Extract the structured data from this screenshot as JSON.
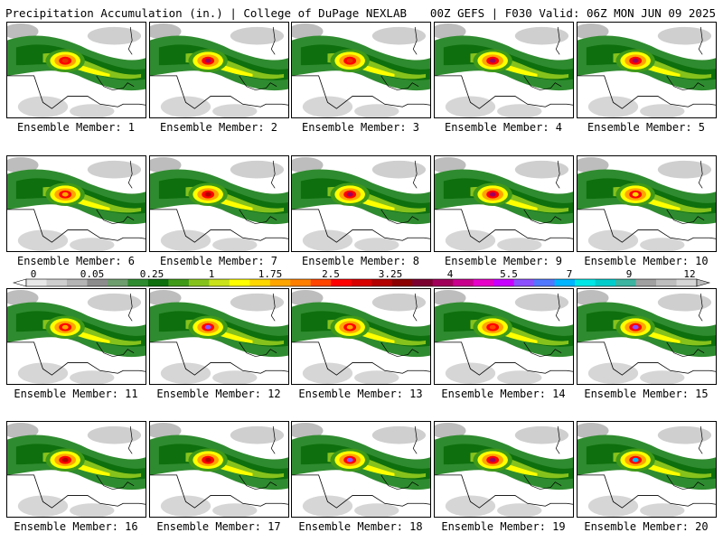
{
  "header": {
    "left": "Precipitation Accumulation (in.) | College of DuPage NEXLAB",
    "right": "00Z GEFS | F030 Valid: 06Z MON JUN 09 2025"
  },
  "colorbar": {
    "tick_labels": [
      "0",
      "0.05",
      "0.25",
      "1",
      "1.75",
      "2.5",
      "3.25",
      "4",
      "5.5",
      "7",
      "9",
      "12"
    ],
    "colors": [
      "#e8e8e8",
      "#cfcfcf",
      "#b4b4b4",
      "#8c8c8c",
      "#6e9d6e",
      "#2f8b2f",
      "#0d6f0d",
      "#3f9a18",
      "#86c21c",
      "#c9e219",
      "#ffff00",
      "#ffd700",
      "#ffa500",
      "#ff7f00",
      "#ff4500",
      "#ff0000",
      "#d90000",
      "#b30000",
      "#8b0000",
      "#7a0030",
      "#a0005a",
      "#c8008c",
      "#e600c8",
      "#c800ff",
      "#8c50ff",
      "#5078ff",
      "#00b4ff",
      "#00e6e6",
      "#00cccc",
      "#3cb4a0",
      "#a0a0a0",
      "#bdbdbd",
      "#d6d6d6"
    ]
  },
  "panels": [
    {
      "label": "Ensemble Member: 1",
      "peak": "#e63000"
    },
    {
      "label": "Ensemble Member: 2",
      "peak": "#a0005a"
    },
    {
      "label": "Ensemble Member: 3",
      "peak": "#e63000"
    },
    {
      "label": "Ensemble Member: 4",
      "peak": "#a0005a"
    },
    {
      "label": "Ensemble Member: 5",
      "peak": "#a0005a"
    },
    {
      "label": "Ensemble Member: 6",
      "peak": "#ffa500"
    },
    {
      "label": "Ensemble Member: 7",
      "peak": "#b30000"
    },
    {
      "label": "Ensemble Member: 8",
      "peak": "#a0005a"
    },
    {
      "label": "Ensemble Member: 9",
      "peak": "#a0005a"
    },
    {
      "label": "Ensemble Member: 10",
      "peak": "#ffd700"
    },
    {
      "label": "Ensemble Member: 11",
      "peak": "#ffa500"
    },
    {
      "label": "Ensemble Member: 12",
      "peak": "#8c50ff"
    },
    {
      "label": "Ensemble Member: 13",
      "peak": "#ffa500"
    },
    {
      "label": "Ensemble Member: 14",
      "peak": "#ff4500"
    },
    {
      "label": "Ensemble Member: 15",
      "peak": "#8c50ff"
    },
    {
      "label": "Ensemble Member: 16",
      "peak": "#b30000"
    },
    {
      "label": "Ensemble Member: 17",
      "peak": "#b30000"
    },
    {
      "label": "Ensemble Member: 18",
      "peak": "#8c50ff"
    },
    {
      "label": "Ensemble Member: 19",
      "peak": "#a0005a"
    },
    {
      "label": "Ensemble Member: 20",
      "peak": "#00b4ff"
    }
  ]
}
